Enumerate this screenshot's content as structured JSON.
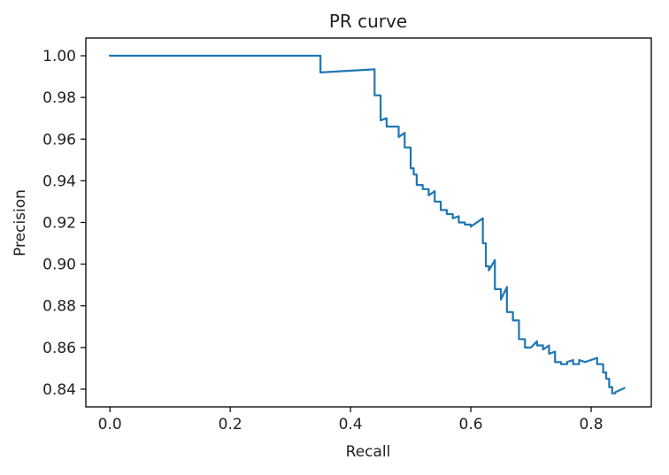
{
  "chart_data": {
    "type": "line",
    "title": "PR curve",
    "xlabel": "Recall",
    "ylabel": "Precision",
    "xlim": [
      -0.04,
      0.9
    ],
    "ylim": [
      0.8315,
      1.0085
    ],
    "xticks": [
      0.0,
      0.2,
      0.4,
      0.6,
      0.8
    ],
    "xtick_labels": [
      "0.0",
      "0.2",
      "0.4",
      "0.6",
      "0.8"
    ],
    "yticks": [
      0.84,
      0.86,
      0.88,
      0.9,
      0.92,
      0.94,
      0.96,
      0.98,
      1.0
    ],
    "ytick_labels": [
      "0.84",
      "0.86",
      "0.88",
      "0.90",
      "0.92",
      "0.94",
      "0.96",
      "0.98",
      "1.00"
    ],
    "grid": false,
    "legend": "none",
    "series": [
      {
        "color": "#1f77b4",
        "x": [
          0.0,
          0.35,
          0.35,
          0.44,
          0.44,
          0.45,
          0.45,
          0.46,
          0.46,
          0.48,
          0.48,
          0.49,
          0.49,
          0.5,
          0.5,
          0.505,
          0.505,
          0.51,
          0.51,
          0.52,
          0.52,
          0.53,
          0.53,
          0.54,
          0.54,
          0.55,
          0.55,
          0.56,
          0.56,
          0.57,
          0.57,
          0.58,
          0.58,
          0.59,
          0.59,
          0.6,
          0.6,
          0.62,
          0.62,
          0.625,
          0.625,
          0.63,
          0.63,
          0.64,
          0.64,
          0.65,
          0.65,
          0.66,
          0.66,
          0.67,
          0.67,
          0.68,
          0.68,
          0.69,
          0.69,
          0.7,
          0.7,
          0.71,
          0.71,
          0.72,
          0.72,
          0.73,
          0.73,
          0.74,
          0.74,
          0.75,
          0.75,
          0.76,
          0.76,
          0.77,
          0.77,
          0.78,
          0.78,
          0.79,
          0.79,
          0.81,
          0.81,
          0.82,
          0.82,
          0.825,
          0.825,
          0.83,
          0.83,
          0.835,
          0.835,
          0.84,
          0.84,
          0.855
        ],
        "y": [
          1.0,
          1.0,
          0.992,
          0.9935,
          0.981,
          0.981,
          0.969,
          0.97,
          0.966,
          0.966,
          0.961,
          0.963,
          0.956,
          0.956,
          0.946,
          0.946,
          0.943,
          0.943,
          0.938,
          0.938,
          0.936,
          0.936,
          0.933,
          0.935,
          0.93,
          0.93,
          0.926,
          0.926,
          0.924,
          0.924,
          0.922,
          0.923,
          0.92,
          0.92,
          0.919,
          0.919,
          0.918,
          0.922,
          0.91,
          0.91,
          0.899,
          0.899,
          0.897,
          0.902,
          0.888,
          0.888,
          0.883,
          0.889,
          0.877,
          0.877,
          0.873,
          0.873,
          0.864,
          0.864,
          0.86,
          0.86,
          0.86,
          0.863,
          0.861,
          0.861,
          0.859,
          0.861,
          0.857,
          0.858,
          0.853,
          0.853,
          0.852,
          0.852,
          0.853,
          0.854,
          0.852,
          0.852,
          0.854,
          0.853,
          0.853,
          0.855,
          0.852,
          0.852,
          0.848,
          0.848,
          0.845,
          0.845,
          0.841,
          0.841,
          0.838,
          0.838,
          0.8385,
          0.8405
        ]
      }
    ]
  }
}
